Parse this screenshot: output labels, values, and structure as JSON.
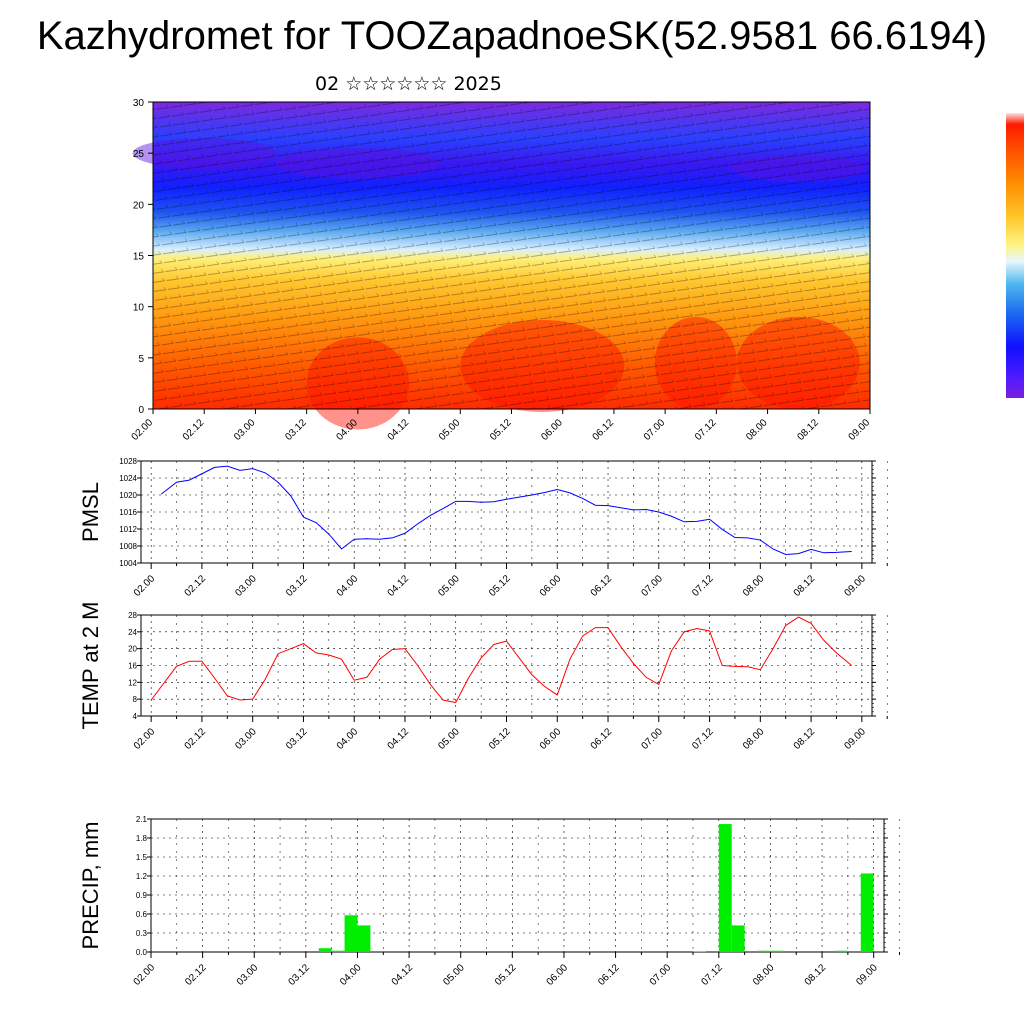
{
  "title": "Kazhydromet for TOOZapadnoeSK(52.9581 66.6194)",
  "subtitle": "02 ☆☆☆☆☆☆ 2025",
  "time_labels": [
    "02.00",
    "02.12",
    "03.00",
    "03.12",
    "04.00",
    "04.12",
    "05.00",
    "05.12",
    "06.00",
    "06.12",
    "07.00",
    "07.12",
    "08.00",
    "08.12",
    "09.00"
  ],
  "colors": {
    "pmsl_line": "#0000ff",
    "temp_line": "#ff0000",
    "precip_bar": "#00ee00",
    "colorbar": [
      "#7b1fe0",
      "#4a1aff",
      "#1010ff",
      "#1c6cf0",
      "#4fb7ee",
      "#e8f7ff",
      "#fff280",
      "#ffc426",
      "#ff8a00",
      "#ff4a00",
      "#ff1a00",
      "#ffffff"
    ]
  },
  "chart_data": [
    {
      "type": "heatmap",
      "name": "vertical-cross-section",
      "x_range": [
        0,
        14
      ],
      "ylim": [
        0,
        30
      ],
      "yticks": [
        0,
        5,
        10,
        15,
        20,
        25,
        30
      ],
      "xlabel": "",
      "ylabel": ""
    },
    {
      "type": "line",
      "name": "pmsl",
      "ylabel": "PMSL",
      "ylim": [
        1004,
        1028
      ],
      "yticks": [
        1004,
        1008,
        1012,
        1016,
        1020,
        1024,
        1028
      ],
      "series": [
        {
          "x": [
            0.2,
            0.5,
            0.75,
            1.0,
            1.25,
            1.5,
            1.75,
            2.0,
            2.25,
            2.5,
            2.75,
            3.0,
            3.25,
            3.5,
            3.75,
            4.0,
            4.25,
            4.5,
            4.75,
            5.0,
            5.25,
            5.5,
            5.75,
            6.0,
            6.25,
            6.5,
            6.75,
            7.0,
            7.25,
            7.5,
            7.75,
            8.0,
            8.25,
            8.5,
            8.75,
            9.0,
            9.25,
            9.5,
            9.75,
            10.0,
            10.25,
            10.5,
            10.75,
            11.0,
            11.25,
            11.5,
            11.75,
            12.0,
            12.25,
            12.5,
            12.75,
            13.0,
            13.25,
            13.5,
            13.8
          ],
          "values": [
            1020.2,
            1023.0,
            1023.5,
            1025.0,
            1026.5,
            1026.8,
            1025.8,
            1026.2,
            1025.2,
            1023.0,
            1019.8,
            1014.8,
            1013.5,
            1010.8,
            1007.3,
            1009.6,
            1009.7,
            1009.6,
            1009.9,
            1011.0,
            1013.2,
            1015.2,
            1016.8,
            1018.5,
            1018.5,
            1018.3,
            1018.4,
            1019.0,
            1019.5,
            1020.0,
            1020.6,
            1021.3,
            1020.5,
            1019.2,
            1017.6,
            1017.5,
            1017.0,
            1016.5,
            1016.6,
            1016.0,
            1015.0,
            1013.7,
            1013.8,
            1014.3,
            1011.9,
            1010.0,
            1009.9,
            1009.4,
            1007.3,
            1006.0,
            1006.2,
            1007.2,
            1006.4,
            1006.5,
            1006.7
          ]
        }
      ]
    },
    {
      "type": "line",
      "name": "temp",
      "ylabel": "TEMP at 2 M",
      "ylim": [
        4,
        28
      ],
      "yticks": [
        4,
        8,
        12,
        16,
        20,
        24,
        28
      ],
      "series": [
        {
          "x": [
            0.0,
            0.5,
            0.75,
            1.0,
            1.25,
            1.5,
            1.75,
            2.0,
            2.25,
            2.5,
            2.75,
            3.0,
            3.25,
            3.5,
            3.75,
            4.0,
            4.25,
            4.5,
            4.75,
            5.0,
            5.25,
            5.5,
            5.75,
            6.0,
            6.25,
            6.5,
            6.75,
            7.0,
            7.25,
            7.5,
            7.75,
            8.0,
            8.25,
            8.5,
            8.75,
            9.0,
            9.25,
            9.5,
            9.75,
            10.0,
            10.25,
            10.5,
            10.75,
            11.0,
            11.25,
            11.5,
            11.75,
            12.0,
            12.25,
            12.5,
            12.75,
            13.0,
            13.25,
            13.5,
            13.8
          ],
          "values": [
            7.8,
            15.8,
            17.0,
            17.0,
            13.0,
            8.8,
            7.8,
            8.0,
            12.8,
            18.8,
            20.0,
            21.2,
            19.0,
            18.5,
            17.5,
            12.5,
            13.2,
            17.5,
            19.8,
            20.0,
            16.0,
            11.5,
            7.8,
            7.2,
            13.0,
            17.8,
            21.0,
            21.8,
            17.8,
            13.8,
            11.0,
            9.0,
            17.5,
            23.0,
            25.0,
            25.0,
            20.5,
            16.5,
            13.2,
            11.5,
            19.5,
            24.0,
            24.8,
            24.2,
            16.0,
            15.8,
            15.7,
            15.0,
            20.0,
            25.5,
            27.5,
            26.0,
            22.0,
            19.0,
            16.0
          ]
        }
      ]
    },
    {
      "type": "bar",
      "name": "precip",
      "ylabel": "PRECIP, mm",
      "ylim": [
        0,
        2.1
      ],
      "yticks": [
        "0.0",
        "0.3",
        "0.6",
        "0.9",
        "1.2",
        "1.5",
        "1.8",
        "2.1"
      ],
      "yvals": [
        0.0,
        0.3,
        0.6,
        0.9,
        1.2,
        1.5,
        1.8,
        2.1
      ],
      "bars": [
        {
          "x": 3.25,
          "value": 0.06
        },
        {
          "x": 3.5,
          "value": 0.02
        },
        {
          "x": 3.75,
          "value": 0.58
        },
        {
          "x": 4.0,
          "value": 0.42
        },
        {
          "x": 10.5,
          "value": 0.01
        },
        {
          "x": 11.0,
          "value": 2.02
        },
        {
          "x": 11.25,
          "value": 0.42
        },
        {
          "x": 11.75,
          "value": 0.02
        },
        {
          "x": 12.0,
          "value": 0.02
        },
        {
          "x": 13.25,
          "value": 0.02
        },
        {
          "x": 13.75,
          "value": 1.24
        }
      ]
    }
  ]
}
